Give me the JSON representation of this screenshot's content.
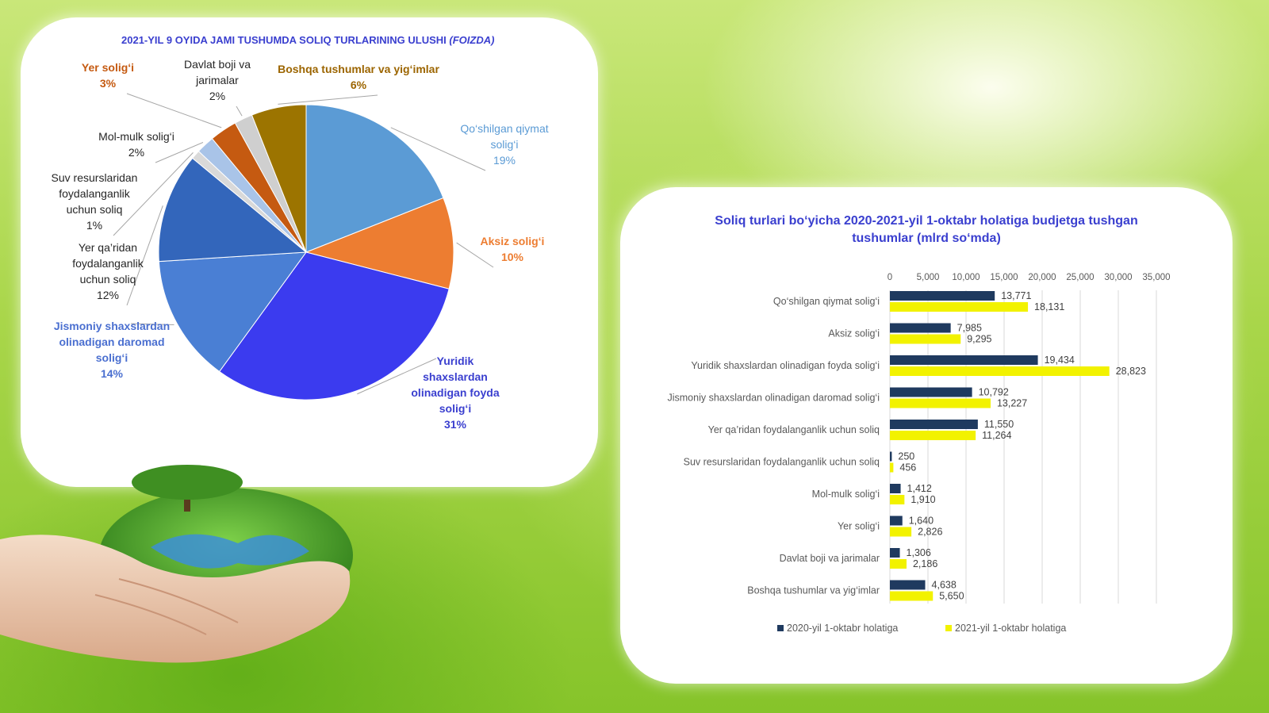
{
  "chart_data": [
    {
      "type": "pie",
      "title": "2021-YIL 9 OYIDA JAMI TUSHUMDA SOLIQ TURLARINING ULUSHI",
      "title_suffix": "(FOIZDA)",
      "slices": [
        {
          "name": "Qo‘shilgan qiymat solig‘i",
          "label_lines": [
            "Qo‘shilgan qiymat",
            "solig‘i"
          ],
          "value": 19,
          "pct": "19%",
          "color": "#5b9bd5",
          "text_color": "#5b9bd5"
        },
        {
          "name": "Aksiz solig‘i",
          "label_lines": [
            "Aksiz solig‘i"
          ],
          "value": 10,
          "pct": "10%",
          "color": "#ed7d31",
          "text_color": "#ed7d31"
        },
        {
          "name": "Yuridik shaxslardan olinadigan foyda solig‘i",
          "label_lines": [
            "Yuridik",
            "shaxslardan",
            "olinadigan foyda",
            "solig‘i"
          ],
          "value": 31,
          "pct": "31%",
          "color": "#3b3bef",
          "text_color": "#3a3fcf"
        },
        {
          "name": "Jismoniy shaxslardan olinadigan daromad solig‘i",
          "label_lines": [
            "Jismoniy shaxslardan",
            "olinadigan daromad",
            "solig‘i"
          ],
          "value": 14,
          "pct": "14%",
          "color": "#4a7fd4",
          "text_color": "#4a6fd0"
        },
        {
          "name": "Yer qa’ridan foydalanganlik uchun soliq",
          "label_lines": [
            "Yer qa’ridan",
            "foydalanganlik",
            "uchun soliq"
          ],
          "value": 12,
          "pct": "12%",
          "color": "#3366bb",
          "text_color": "#262626"
        },
        {
          "name": "Suv resurslaridan foydalanganlik uchun soliq",
          "label_lines": [
            "Suv resurslaridan",
            "foydalanganlik",
            "uchun soliq"
          ],
          "value": 1,
          "pct": "1%",
          "color": "#d9d9d9",
          "text_color": "#262626"
        },
        {
          "name": "Mol-mulk solig‘i",
          "label_lines": [
            "Mol-mulk solig‘i"
          ],
          "value": 2,
          "pct": "2%",
          "color": "#a9c4e8",
          "text_color": "#262626"
        },
        {
          "name": "Yer solig‘i",
          "label_lines": [
            "Yer solig‘i"
          ],
          "value": 3,
          "pct": "3%",
          "color": "#c55a11",
          "text_color": "#c55a11"
        },
        {
          "name": "Davlat boji va jarimalar",
          "label_lines": [
            "Davlat boji va",
            "jarimalar"
          ],
          "value": 2,
          "pct": "2%",
          "color": "#cfcfcf",
          "text_color": "#262626"
        },
        {
          "name": "Boshqa tushumlar va yig‘imlar",
          "label_lines": [
            "Boshqa tushumlar va yig‘imlar"
          ],
          "value": 6,
          "pct": "6%",
          "color": "#9c7400",
          "text_color": "#9c6500"
        }
      ]
    },
    {
      "type": "bar",
      "orientation": "horizontal",
      "title_lines": [
        "Soliq turlari bo‘yicha 2020-2021-yil 1-oktabr holatiga budjetga tushgan",
        "tushumlar (mlrd so‘mda)"
      ],
      "xlim": [
        0,
        35000
      ],
      "ticks": [
        "0",
        "5,000",
        "10,000",
        "15,000",
        "20,000",
        "25,000",
        "30,000",
        "35,000"
      ],
      "categories": [
        "Qo‘shilgan qiymat solig‘i",
        "Aksiz solig‘i",
        "Yuridik shaxslardan olinadigan foyda solig‘i",
        "Jismoniy shaxslardan olinadigan daromad solig‘i",
        "Yer qa’ridan foydalanganlik uchun soliq",
        "Suv resurslaridan foydalanganlik uchun soliq",
        "Mol-mulk solig‘i",
        "Yer solig‘i",
        "Davlat boji va jarimalar",
        "Boshqa tushumlar va yig‘imlar"
      ],
      "series": [
        {
          "name": "2020-yil    1-oktabr holatiga",
          "color": "#1f3a5f",
          "values": [
            13771,
            7985,
            19434,
            10792,
            11550,
            250,
            1412,
            1640,
            1306,
            4638
          ],
          "labels": [
            "13,771",
            "7,985",
            "19,434",
            "10,792",
            "11,550",
            "250",
            "1,412",
            "1,640",
            "1,306",
            "4,638"
          ]
        },
        {
          "name": "2021-yil    1-oktabr holatiga",
          "color": "#f2f200",
          "values": [
            18131,
            9295,
            28823,
            13227,
            11264,
            456,
            1910,
            2826,
            2186,
            5650
          ],
          "labels": [
            "18,131",
            "9,295",
            "28,823",
            "13,227",
            "11,264",
            "456",
            "1,910",
            "2,826",
            "2,186",
            "5,650"
          ]
        }
      ],
      "grid": true,
      "legend": "bottom"
    }
  ]
}
